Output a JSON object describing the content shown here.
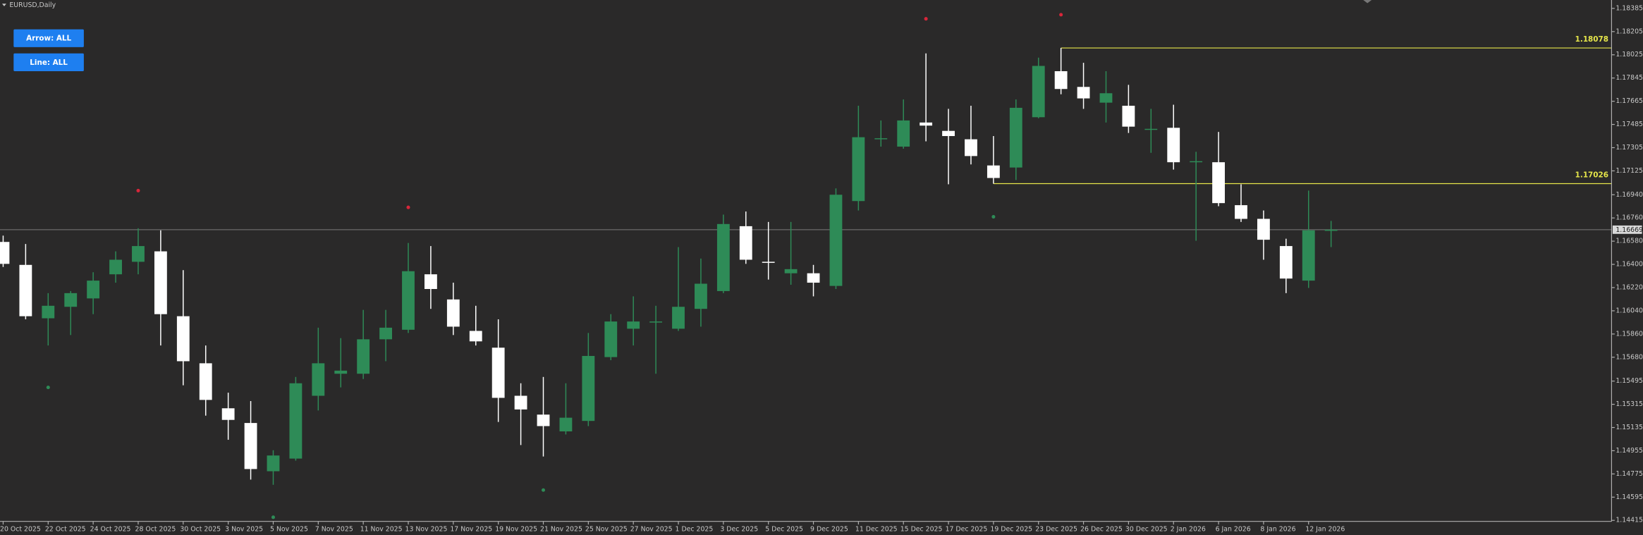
{
  "chart_data": {
    "type": "candlestick",
    "title": "EURUSD,Daily",
    "up_color": "#2e8b57",
    "down_color": "#ffffff",
    "x": [
      "20 Oct 2025",
      "21 Oct 2025",
      "22 Oct 2025",
      "23 Oct 2025",
      "24 Oct 2025",
      "27 Oct 2025",
      "28 Oct 2025",
      "29 Oct 2025",
      "30 Oct 2025",
      "31 Oct 2025",
      "3 Nov 2025",
      "4 Nov 2025",
      "5 Nov 2025",
      "6 Nov 2025",
      "7 Nov 2025",
      "10 Nov 2025",
      "11 Nov 2025",
      "12 Nov 2025",
      "13 Nov 2025",
      "14 Nov 2025",
      "17 Nov 2025",
      "18 Nov 2025",
      "19 Nov 2025",
      "20 Nov 2025",
      "21 Nov 2025",
      "24 Nov 2025",
      "25 Nov 2025",
      "26 Nov 2025",
      "27 Nov 2025",
      "28 Nov 2025",
      "1 Dec 2025",
      "2 Dec 2025",
      "3 Dec 2025",
      "4 Dec 2025",
      "5 Dec 2025",
      "8 Dec 2025",
      "9 Dec 2025",
      "10 Dec 2025",
      "11 Dec 2025",
      "12 Dec 2025",
      "15 Dec 2025",
      "16 Dec 2025",
      "17 Dec 2025",
      "18 Dec 2025",
      "19 Dec 2025",
      "22 Dec 2025",
      "23 Dec 2025",
      "24 Dec 2025",
      "26 Dec 2025",
      "29 Dec 2025",
      "30 Dec 2025",
      "31 Dec 2025",
      "2 Jan 2026",
      "5 Jan 2026",
      "6 Jan 2026",
      "7 Jan 2026",
      "8 Jan 2026",
      "9 Jan 2026",
      "12 Jan 2026",
      "13 Jan 2026"
    ],
    "open": [
      1.16574,
      1.16396,
      1.15982,
      1.16071,
      1.16136,
      1.16323,
      1.1642,
      1.16501,
      1.15998,
      1.15633,
      1.15284,
      1.1517,
      1.14796,
      1.14894,
      1.15381,
      1.15552,
      1.15552,
      1.15819,
      1.15893,
      1.16323,
      1.16128,
      1.15884,
      1.15754,
      1.15381,
      1.15235,
      1.15105,
      1.15186,
      1.15681,
      1.15901,
      1.15949,
      1.15901,
      1.16055,
      1.16193,
      1.16696,
      1.1642,
      1.16331,
      1.16331,
      1.16233,
      1.16891,
      1.1737,
      1.17313,
      1.175,
      1.17435,
      1.1737,
      1.17167,
      1.17151,
      1.17541,
      1.17898,
      1.17776,
      1.17654,
      1.1763,
      1.17443,
      1.17459,
      1.17192,
      1.17192,
      1.16859,
      1.16753,
      1.16542,
      1.16274,
      1.1666
    ],
    "high": [
      1.16623,
      1.16558,
      1.16177,
      1.16193,
      1.16339,
      1.16501,
      1.1668,
      1.16664,
      1.16355,
      1.15771,
      1.15405,
      1.1534,
      1.14959,
      1.15527,
      1.15909,
      1.15828,
      1.16047,
      1.16047,
      1.16566,
      1.16542,
      1.16258,
      1.16079,
      1.15974,
      1.15478,
      1.15527,
      1.15478,
      1.15868,
      1.16014,
      1.16152,
      1.16079,
      1.16534,
      1.16445,
      1.16786,
      1.1681,
      1.16729,
      1.16729,
      1.16396,
      1.16989,
      1.1763,
      1.17516,
      1.17679,
      1.18036,
      1.17606,
      1.1763,
      1.17395,
      1.17679,
      1.18003,
      1.18078,
      1.17963,
      1.17898,
      1.17792,
      1.17606,
      1.17638,
      1.17273,
      1.17427,
      1.17021,
      1.16818,
      1.16599,
      1.16972,
      1.16737
    ],
    "low": [
      1.1638,
      1.15974,
      1.15771,
      1.15852,
      1.16014,
      1.16258,
      1.16323,
      1.15771,
      1.15462,
      1.15227,
      1.1504,
      1.14731,
      1.14691,
      1.14878,
      1.15267,
      1.15446,
      1.15511,
      1.15649,
      1.15868,
      1.16055,
      1.15852,
      1.15771,
      1.15178,
      1.14999,
      1.1491,
      1.15081,
      1.15146,
      1.15657,
      1.15771,
      1.15552,
      1.15884,
      1.15917,
      1.16177,
      1.16404,
      1.16282,
      1.16242,
      1.16152,
      1.16209,
      1.16818,
      1.17313,
      1.17297,
      1.17354,
      1.17021,
      1.17175,
      1.17026,
      1.17054,
      1.17533,
      1.17719,
      1.17606,
      1.175,
      1.17419,
      1.17265,
      1.17135,
      1.16583,
      1.16851,
      1.16729,
      1.16436,
      1.16177,
      1.16217,
      1.16534
    ],
    "close": [
      1.16404,
      1.15998,
      1.16079,
      1.16177,
      1.16274,
      1.16436,
      1.16542,
      1.16014,
      1.15649,
      1.15349,
      1.15194,
      1.14813,
      1.14918,
      1.15478,
      1.15633,
      1.15576,
      1.15819,
      1.15909,
      1.16347,
      1.16209,
      1.15917,
      1.15803,
      1.15365,
      1.15275,
      1.15146,
      1.15211,
      1.1569,
      1.15957,
      1.15957,
      1.15957,
      1.16071,
      1.1625,
      1.16713,
      1.16436,
      1.16412,
      1.16363,
      1.16258,
      1.1694,
      1.17386,
      1.17378,
      1.17516,
      1.17476,
      1.17395,
      1.1724,
      1.1707,
      1.17614,
      1.17939,
      1.1776,
      1.17687,
      1.17727,
      1.17468,
      1.17451,
      1.17192,
      1.172,
      1.16875,
      1.16753,
      1.16591,
      1.1629,
      1.16664,
      1.16669
    ],
    "ylim": [
      1.14407,
      1.1845
    ],
    "yticks": [
      1.18385,
      1.18205,
      1.18025,
      1.17845,
      1.17665,
      1.17485,
      1.17305,
      1.17125,
      {
        "value": 1.1694,
        "label": "1.16940"
      },
      {
        "value": 1.1676,
        "label": "1.16760"
      },
      {
        "value": 1.1658,
        "label": "1.16580"
      },
      {
        "value": 1.164,
        "label": "1.16400"
      },
      {
        "value": 1.1622,
        "label": "1.16220"
      },
      {
        "value": 1.1604,
        "label": "1.16040"
      },
      {
        "value": 1.1586,
        "label": "1.15860"
      },
      {
        "value": 1.1568,
        "label": "1.15680"
      },
      1.15495,
      1.15315,
      1.15135,
      1.14955,
      1.14775,
      1.14595,
      1.14415
    ],
    "xticks": [
      "20 Oct 2025",
      "22 Oct 2025",
      "24 Oct 2025",
      "28 Oct 2025",
      "30 Oct 2025",
      "3 Nov 2025",
      "5 Nov 2025",
      "7 Nov 2025",
      "11 Nov 2025",
      "13 Nov 2025",
      "17 Nov 2025",
      "19 Nov 2025",
      "21 Nov 2025",
      "25 Nov 2025",
      "27 Nov 2025",
      "1 Dec 2025",
      "3 Dec 2025",
      "5 Dec 2025",
      "9 Dec 2025",
      "11 Dec 2025",
      "15 Dec 2025",
      "17 Dec 2025",
      "19 Dec 2025",
      "23 Dec 2025",
      "26 Dec 2025",
      "30 Dec 2025",
      "2 Jan 2026",
      "6 Jan 2026",
      "8 Jan 2026",
      "12 Jan 2026"
    ],
    "levels": [
      {
        "value": 1.18078,
        "x": "24 Dec 2025",
        "color": "#e6e64a"
      },
      {
        "value": 1.17026,
        "x": "19 Dec 2025",
        "color": "#e6e64a"
      }
    ],
    "markers": [
      {
        "color": "#d8263a",
        "x": [
          "28 Oct 2025",
          "13 Nov 2025",
          "16 Dec 2025",
          "24 Dec 2025"
        ],
        "values": [
          1.16972,
          1.16842,
          1.18304,
          1.18336
        ]
      },
      {
        "color": "#2e8b57",
        "x": [
          "22 Oct 2025",
          "5 Nov 2025",
          "21 Nov 2025",
          "19 Dec 2025"
        ],
        "values": [
          1.15446,
          1.14439,
          1.1465,
          1.16769
        ]
      }
    ]
  },
  "buttons": [
    "Arrow: ALL",
    "Line: ALL"
  ]
}
